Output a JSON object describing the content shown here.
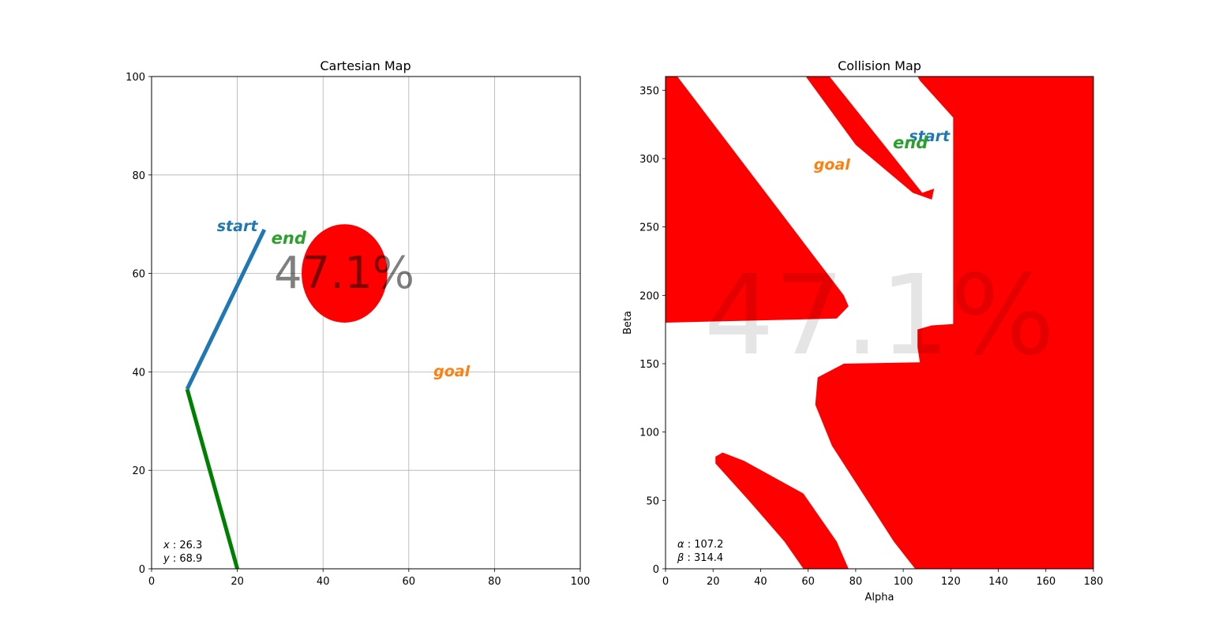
{
  "chart_data": [
    {
      "type": "line",
      "title": "Cartesian Map",
      "xlabel": "",
      "ylabel": "",
      "xlim": [
        0,
        100
      ],
      "ylim": [
        0,
        100
      ],
      "grid": true,
      "x_ticks": [
        0,
        20,
        40,
        60,
        80,
        100
      ],
      "y_ticks": [
        0,
        20,
        40,
        60,
        80,
        100
      ],
      "series": [
        {
          "color": "#008000",
          "points": [
            [
              20,
              0
            ],
            [
              8.3,
              36.5
            ]
          ]
        },
        {
          "color": "#1f77b4",
          "points": [
            [
              8.3,
              36.5
            ],
            [
              26.3,
              68.9
            ]
          ]
        }
      ],
      "obstacle": {
        "shape": "ellipse",
        "center": [
          45,
          60
        ],
        "rx": 10,
        "ry": 10,
        "color": "#ff0000"
      },
      "annotations": [
        {
          "text": "start",
          "at": [
            20,
            69.5
          ],
          "color": "#1f77b4"
        },
        {
          "text": "end",
          "at": [
            32,
            67
          ],
          "color": "#2ca02c"
        },
        {
          "text": "goal",
          "at": [
            70,
            40
          ],
          "color": "#ff7f0e"
        }
      ],
      "watermark": "47.1%",
      "readout": {
        "x_label": "x",
        "x_value": "26.3",
        "y_label": "y",
        "y_value": "68.9"
      }
    },
    {
      "type": "heatmap",
      "title": "Collision Map",
      "xlabel": "Alpha",
      "ylabel": "Beta",
      "xlim": [
        0,
        180
      ],
      "ylim": [
        0,
        360
      ],
      "x_ticks": [
        0,
        20,
        40,
        60,
        80,
        100,
        120,
        140,
        160,
        180
      ],
      "y_ticks": [
        0,
        50,
        100,
        150,
        200,
        250,
        300,
        350
      ],
      "collision_color": "#ff0000",
      "collision_fraction_percent": 47.1,
      "collision_regions": [
        [
          [
            0,
            360
          ],
          [
            5,
            360
          ],
          [
            75,
            200
          ],
          [
            77,
            192
          ],
          [
            72,
            183
          ],
          [
            0,
            180
          ]
        ],
        [
          [
            59,
            360
          ],
          [
            69,
            360
          ],
          [
            108,
            275
          ],
          [
            113,
            278
          ],
          [
            112,
            270
          ],
          [
            104,
            275
          ],
          [
            80,
            310
          ]
        ],
        [
          [
            106,
            360
          ],
          [
            180,
            360
          ],
          [
            180,
            0
          ],
          [
            105,
            0
          ],
          [
            96,
            20
          ],
          [
            70,
            90
          ],
          [
            63,
            120
          ],
          [
            64,
            140
          ],
          [
            75,
            150
          ],
          [
            107,
            151
          ],
          [
            106,
            162
          ],
          [
            106,
            175
          ],
          [
            112,
            178
          ],
          [
            121,
            179
          ],
          [
            121,
            330
          ],
          [
            107,
            357
          ]
        ],
        [
          [
            21,
            82
          ],
          [
            24,
            85
          ],
          [
            33,
            79
          ],
          [
            58,
            55
          ],
          [
            72,
            20
          ],
          [
            77,
            0
          ],
          [
            58,
            0
          ],
          [
            50,
            20
          ],
          [
            35,
            50
          ],
          [
            21,
            77
          ]
        ]
      ],
      "annotations": [
        {
          "text": "start",
          "at": [
            111,
            316
          ],
          "color": "#1f77b4"
        },
        {
          "text": "end",
          "at": [
            103,
            311
          ],
          "color": "#2ca02c"
        },
        {
          "text": "goal",
          "at": [
            70,
            295
          ],
          "color": "#ff7f0e"
        }
      ],
      "watermark": "47.1%",
      "readout": {
        "x_label": "α",
        "x_value": "107.2",
        "y_label": "β",
        "y_value": "314.4"
      }
    }
  ]
}
